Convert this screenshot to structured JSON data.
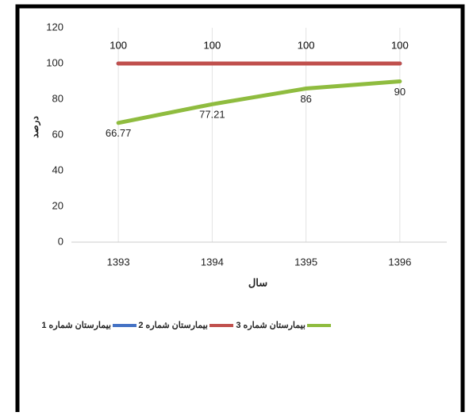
{
  "chart_data": {
    "type": "line",
    "x_label": "سال",
    "y_label": "درصد",
    "categories": [
      "1393",
      "1394",
      "1395",
      "1396"
    ],
    "series": [
      {
        "name": "بیمارستان شماره 1",
        "color": "#4472c4",
        "values": [
          100,
          100,
          100,
          100
        ]
      },
      {
        "name": "بیمارستان شماره 2",
        "color": "#c0504d",
        "values": [
          100,
          100,
          100,
          100
        ]
      },
      {
        "name": "بیمارستان شماره 3",
        "color": "#8fbc3f",
        "values": [
          66.77,
          77.21,
          86,
          90
        ]
      }
    ],
    "ylim": [
      0,
      120
    ],
    "yticks": [
      0,
      20,
      40,
      60,
      80,
      100,
      120
    ],
    "grid": true,
    "legend": "bottom"
  }
}
